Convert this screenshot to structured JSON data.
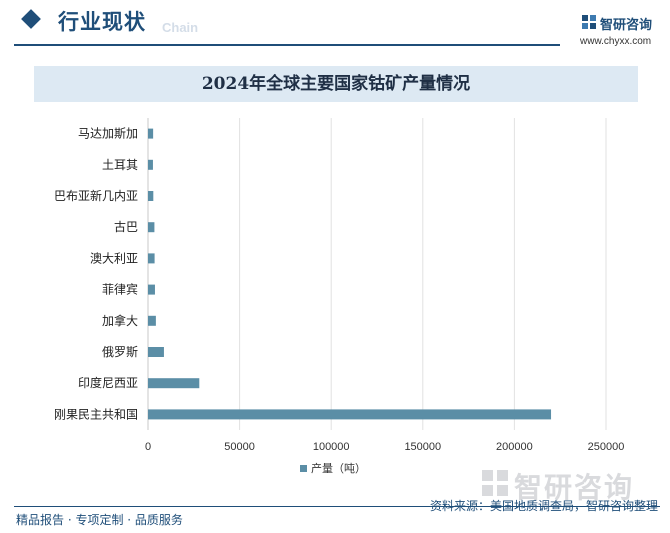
{
  "header": {
    "section_title": "行业现状",
    "section_en": "Chain",
    "brand_name": "智研咨询",
    "brand_url": "www.chyxx.com"
  },
  "footer": {
    "left_text": "精品报告 · 专项定制 · 品质服务",
    "source_text": "资料来源：美国地质调查局，智研咨询整理"
  },
  "watermark": {
    "text": "智研咨询"
  },
  "colors": {
    "bar": "#5b8ea6",
    "accent": "#1f4e79",
    "title_band": "#dde9f3"
  },
  "chart_data": {
    "type": "bar",
    "orientation": "horizontal",
    "title": "2024年全球主要国家钴矿产量情况",
    "categories": [
      "马达加斯加",
      "土耳其",
      "巴布亚新几内亚",
      "古巴",
      "澳大利亚",
      "菲律宾",
      "加拿大",
      "俄罗斯",
      "印度尼西亚",
      "刚果民主共和国"
    ],
    "series": [
      {
        "name": "产量（吨）",
        "values": [
          2800,
          2700,
          2900,
          3500,
          3600,
          3800,
          4300,
          8700,
          28000,
          220000
        ]
      }
    ],
    "xlim": [
      0,
      250000
    ],
    "xticks": [
      0,
      50000,
      100000,
      150000,
      200000,
      250000
    ],
    "grid": true,
    "legend_position": "bottom"
  }
}
